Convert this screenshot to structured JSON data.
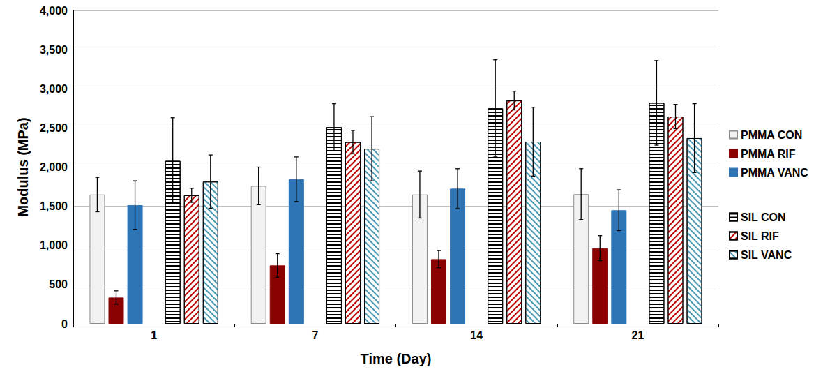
{
  "chart_data": {
    "type": "bar",
    "x_label": "Time (Day)",
    "y_label": "Modulus (MPa)",
    "categories": [
      "1",
      "7",
      "14",
      "21"
    ],
    "ylim": [
      0,
      4000
    ],
    "yticks": [
      0,
      500,
      1000,
      1500,
      2000,
      2500,
      3000,
      3500,
      4000
    ],
    "grid": true,
    "legend": "right",
    "series": [
      {
        "name": "PMMA CON",
        "color": "#f2f2f2",
        "values": [
          1650,
          1760,
          1650,
          1655
        ],
        "errors": [
          220,
          240,
          300,
          325
        ]
      },
      {
        "name": "PMMA RIF",
        "color": "#8b0000",
        "values": [
          335,
          745,
          825,
          965
        ],
        "errors": [
          85,
          150,
          110,
          160
        ]
      },
      {
        "name": "PMMA VANC",
        "color": "#2e75b6",
        "values": [
          1515,
          1845,
          1725,
          1450
        ],
        "errors": [
          310,
          285,
          255,
          260
        ]
      },
      {
        "name": "SIL CON",
        "color": "#000000",
        "values": [
          2080,
          2510,
          2750,
          2820
        ],
        "errors": [
          550,
          300,
          620,
          540
        ]
      },
      {
        "name": "SIL RIF",
        "color": "#c00000",
        "values": [
          1640,
          2320,
          2850,
          2645
        ],
        "errors": [
          90,
          150,
          120,
          155
        ]
      },
      {
        "name": "SIL VANC",
        "color": "#4a9ab5",
        "values": [
          1815,
          2235,
          2325,
          2370
        ],
        "errors": [
          340,
          410,
          440,
          440
        ]
      }
    ]
  }
}
